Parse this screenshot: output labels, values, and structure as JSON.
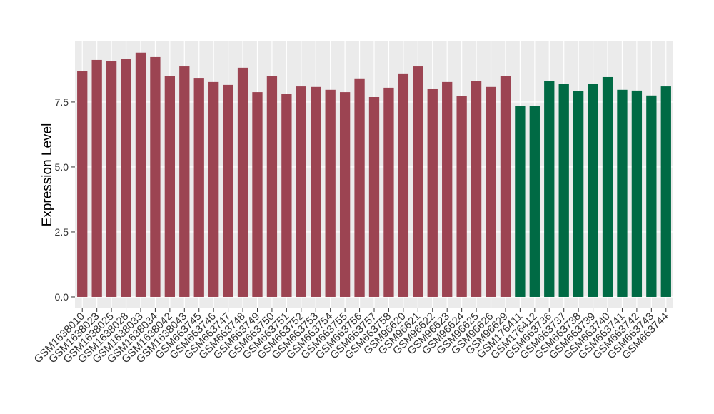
{
  "chart_data": {
    "type": "bar",
    "y_label": "Expression Level",
    "categories": [
      "GSM1638010",
      "GSM1638023",
      "GSM1638025",
      "GSM1638028",
      "GSM1638033",
      "GSM1638034",
      "GSM1638042",
      "GSM1638043",
      "GSM663745",
      "GSM663746",
      "GSM663747",
      "GSM663748",
      "GSM663749",
      "GSM663750",
      "GSM663751",
      "GSM663752",
      "GSM663753",
      "GSM663754",
      "GSM663755",
      "GSM663756",
      "GSM663757",
      "GSM663758",
      "GSM96620",
      "GSM96621",
      "GSM96622",
      "GSM96623",
      "GSM96624",
      "GSM96625",
      "GSM96626",
      "GSM96629",
      "GSM176411",
      "GSM176412",
      "GSM663736",
      "GSM663737",
      "GSM663738",
      "GSM663739",
      "GSM663740",
      "GSM663741",
      "GSM663742",
      "GSM663743",
      "GSM663744"
    ],
    "values": [
      8.68,
      9.12,
      9.09,
      9.15,
      9.4,
      9.23,
      8.49,
      8.87,
      8.43,
      8.27,
      8.16,
      8.82,
      7.88,
      8.49,
      7.8,
      8.1,
      8.08,
      7.97,
      7.88,
      8.41,
      7.69,
      8.05,
      8.6,
      8.87,
      8.02,
      8.27,
      7.72,
      8.3,
      8.08,
      8.49,
      7.36,
      7.36,
      8.32,
      8.19,
      7.91,
      8.19,
      8.46,
      7.97,
      7.94,
      7.75,
      8.1
    ],
    "colors": [
      "#9c4452",
      "#9c4452",
      "#9c4452",
      "#9c4452",
      "#9c4452",
      "#9c4452",
      "#9c4452",
      "#9c4452",
      "#9c4452",
      "#9c4452",
      "#9c4452",
      "#9c4452",
      "#9c4452",
      "#9c4452",
      "#9c4452",
      "#9c4452",
      "#9c4452",
      "#9c4452",
      "#9c4452",
      "#9c4452",
      "#9c4452",
      "#9c4452",
      "#9c4452",
      "#9c4452",
      "#9c4452",
      "#9c4452",
      "#9c4452",
      "#9c4452",
      "#9c4452",
      "#9c4452",
      "#006a44",
      "#006a44",
      "#006a44",
      "#006a44",
      "#006a44",
      "#006a44",
      "#006a44",
      "#006a44",
      "#006a44",
      "#006a44",
      "#006a44"
    ],
    "ylim": [
      -0.44,
      9.86
    ],
    "yticks": [
      {
        "value": 0,
        "label": "0.0"
      },
      2.5,
      {
        "value": 5,
        "label": "5.0"
      },
      7.5
    ],
    "grid": true
  }
}
